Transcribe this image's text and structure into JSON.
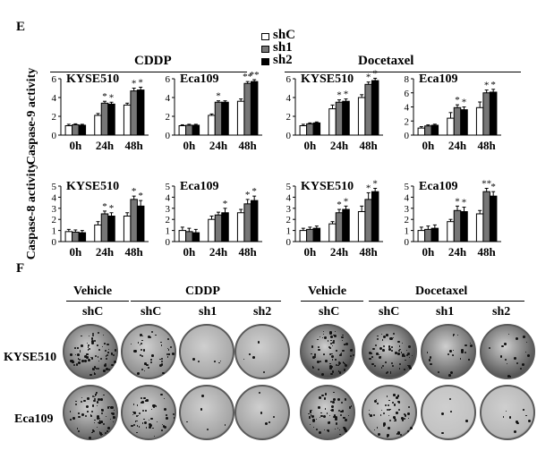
{
  "panels": {
    "E": "E",
    "F": "F"
  },
  "legend": [
    {
      "label": "shC",
      "color": "#ffffff"
    },
    {
      "label": "sh1",
      "color": "#777777"
    },
    {
      "label": "sh2",
      "color": "#000000"
    }
  ],
  "headers": {
    "cddp": "CDDP",
    "docetaxel": "Docetaxel"
  },
  "ylabels": {
    "casp9": "Caspase-9 activity",
    "casp8": "Caspase-8 activity"
  },
  "chart_data": [
    {
      "type": "bar",
      "title": "KYSE510",
      "group": "CDDP",
      "ylabel": "Caspase-9 activity",
      "categories": [
        "0h",
        "24h",
        "48h"
      ],
      "ylim": [
        0,
        6
      ],
      "yticks": [
        0,
        2,
        4,
        6
      ],
      "series": [
        {
          "name": "shC",
          "values": [
            1.0,
            2.1,
            3.2
          ],
          "errors": [
            0.15,
            0.2,
            0.2
          ]
        },
        {
          "name": "sh1",
          "values": [
            1.1,
            3.4,
            4.7
          ],
          "errors": [
            0.1,
            0.2,
            0.3
          ]
        },
        {
          "name": "sh2",
          "values": [
            1.05,
            3.3,
            4.8
          ],
          "errors": [
            0.1,
            0.2,
            0.3
          ]
        }
      ],
      "annotations": [
        {
          "category": "24h",
          "series": "sh1",
          "text": "*"
        },
        {
          "category": "24h",
          "series": "sh2",
          "text": "*"
        },
        {
          "category": "48h",
          "series": "sh1",
          "text": "*"
        },
        {
          "category": "48h",
          "series": "sh2",
          "text": "*"
        }
      ]
    },
    {
      "type": "bar",
      "title": "Eca109",
      "group": "CDDP",
      "ylabel": "Caspase-9 activity",
      "categories": [
        "0h",
        "24h",
        "48h"
      ],
      "ylim": [
        0,
        6
      ],
      "yticks": [
        0,
        2,
        4,
        6
      ],
      "series": [
        {
          "name": "shC",
          "values": [
            1.0,
            2.1,
            3.6
          ],
          "errors": [
            0.1,
            0.15,
            0.25
          ]
        },
        {
          "name": "sh1",
          "values": [
            1.05,
            3.5,
            5.5
          ],
          "errors": [
            0.1,
            0.15,
            0.2
          ]
        },
        {
          "name": "sh2",
          "values": [
            1.05,
            3.5,
            5.7
          ],
          "errors": [
            0.1,
            0.15,
            0.2
          ]
        }
      ],
      "annotations": [
        {
          "category": "24h",
          "series": "sh1",
          "text": "*"
        },
        {
          "category": "48h",
          "series": "sh1",
          "text": "**"
        },
        {
          "category": "48h",
          "series": "sh2",
          "text": "**"
        }
      ]
    },
    {
      "type": "bar",
      "title": "KYSE510",
      "group": "Docetaxel",
      "ylabel": "Caspase-9 activity",
      "categories": [
        "0h",
        "24h",
        "48h"
      ],
      "ylim": [
        0,
        6
      ],
      "yticks": [
        0,
        2,
        4,
        6
      ],
      "series": [
        {
          "name": "shC",
          "values": [
            1.0,
            2.8,
            4.0
          ],
          "errors": [
            0.15,
            0.4,
            0.3
          ]
        },
        {
          "name": "sh1",
          "values": [
            1.2,
            3.5,
            5.4
          ],
          "errors": [
            0.1,
            0.25,
            0.25
          ]
        },
        {
          "name": "sh2",
          "values": [
            1.3,
            3.6,
            5.8
          ],
          "errors": [
            0.1,
            0.25,
            0.25
          ]
        }
      ],
      "annotations": [
        {
          "category": "24h",
          "series": "sh1",
          "text": "*"
        },
        {
          "category": "24h",
          "series": "sh2",
          "text": "*"
        },
        {
          "category": "48h",
          "series": "sh1",
          "text": "*"
        },
        {
          "category": "48h",
          "series": "sh2",
          "text": "*"
        }
      ]
    },
    {
      "type": "bar",
      "title": "Eca109",
      "group": "Docetaxel",
      "ylabel": "Caspase-9 activity",
      "categories": [
        "0h",
        "24h",
        "48h"
      ],
      "ylim": [
        0,
        8
      ],
      "yticks": [
        0,
        2,
        4,
        6,
        8
      ],
      "series": [
        {
          "name": "shC",
          "values": [
            1.0,
            2.4,
            3.9
          ],
          "errors": [
            0.2,
            0.8,
            0.8
          ]
        },
        {
          "name": "sh1",
          "values": [
            1.3,
            3.9,
            6.0
          ],
          "errors": [
            0.15,
            0.4,
            0.4
          ]
        },
        {
          "name": "sh2",
          "values": [
            1.4,
            3.6,
            6.1
          ],
          "errors": [
            0.15,
            0.4,
            0.4
          ]
        }
      ],
      "annotations": [
        {
          "category": "24h",
          "series": "sh1",
          "text": "*"
        },
        {
          "category": "24h",
          "series": "sh2",
          "text": "*"
        },
        {
          "category": "48h",
          "series": "sh1",
          "text": "*"
        },
        {
          "category": "48h",
          "series": "sh2",
          "text": "*"
        }
      ]
    },
    {
      "type": "bar",
      "title": "KYSE510",
      "group": "CDDP",
      "ylabel": "Caspase-8 activity",
      "categories": [
        "0h",
        "24h",
        "48h"
      ],
      "ylim": [
        0,
        5
      ],
      "yticks": [
        0,
        1,
        2,
        3,
        4,
        5
      ],
      "series": [
        {
          "name": "shC",
          "values": [
            0.9,
            1.5,
            2.3
          ],
          "errors": [
            0.2,
            0.3,
            0.3
          ]
        },
        {
          "name": "sh1",
          "values": [
            0.85,
            2.5,
            3.8
          ],
          "errors": [
            0.2,
            0.25,
            0.3
          ]
        },
        {
          "name": "sh2",
          "values": [
            0.8,
            2.3,
            3.2
          ],
          "errors": [
            0.2,
            0.3,
            0.5
          ]
        }
      ],
      "annotations": [
        {
          "category": "24h",
          "series": "sh1",
          "text": "*"
        },
        {
          "category": "24h",
          "series": "sh2",
          "text": "*"
        },
        {
          "category": "48h",
          "series": "sh1",
          "text": "*"
        },
        {
          "category": "48h",
          "series": "sh2",
          "text": "*"
        }
      ]
    },
    {
      "type": "bar",
      "title": "Eca109",
      "group": "CDDP",
      "ylabel": "Caspase-8 activity",
      "categories": [
        "0h",
        "24h",
        "48h"
      ],
      "ylim": [
        0,
        5
      ],
      "yticks": [
        0,
        1,
        2,
        3,
        4,
        5
      ],
      "series": [
        {
          "name": "shC",
          "values": [
            1.0,
            2.0,
            2.6
          ],
          "errors": [
            0.3,
            0.3,
            0.3
          ]
        },
        {
          "name": "sh1",
          "values": [
            0.9,
            2.4,
            3.4
          ],
          "errors": [
            0.3,
            0.25,
            0.4
          ]
        },
        {
          "name": "sh2",
          "values": [
            0.8,
            2.6,
            3.7
          ],
          "errors": [
            0.3,
            0.4,
            0.4
          ]
        }
      ],
      "annotations": [
        {
          "category": "24h",
          "series": "sh2",
          "text": "*"
        },
        {
          "category": "48h",
          "series": "sh1",
          "text": "*"
        },
        {
          "category": "48h",
          "series": "sh2",
          "text": "*"
        }
      ]
    },
    {
      "type": "bar",
      "title": "KYSE510",
      "group": "Docetaxel",
      "ylabel": "Caspase-8 activity",
      "categories": [
        "0h",
        "24h",
        "48h"
      ],
      "ylim": [
        0,
        5
      ],
      "yticks": [
        0,
        1,
        2,
        3,
        4,
        5
      ],
      "series": [
        {
          "name": "shC",
          "values": [
            1.0,
            1.6,
            2.7
          ],
          "errors": [
            0.2,
            0.2,
            0.5
          ]
        },
        {
          "name": "sh1",
          "values": [
            1.1,
            2.6,
            3.8
          ],
          "errors": [
            0.2,
            0.3,
            0.6
          ]
        },
        {
          "name": "sh2",
          "values": [
            1.2,
            2.9,
            4.5
          ],
          "errors": [
            0.2,
            0.3,
            0.3
          ]
        }
      ],
      "annotations": [
        {
          "category": "24h",
          "series": "sh1",
          "text": "*"
        },
        {
          "category": "24h",
          "series": "sh2",
          "text": "*"
        },
        {
          "category": "48h",
          "series": "sh1",
          "text": "*"
        },
        {
          "category": "48h",
          "series": "sh2",
          "text": "*"
        }
      ]
    },
    {
      "type": "bar",
      "title": "Eca109",
      "group": "Docetaxel",
      "ylabel": "Caspase-8 activity",
      "categories": [
        "0h",
        "24h",
        "48h"
      ],
      "ylim": [
        0,
        5
      ],
      "yticks": [
        0,
        1,
        2,
        3,
        4,
        5
      ],
      "series": [
        {
          "name": "shC",
          "values": [
            1.0,
            1.8,
            2.5
          ],
          "errors": [
            0.3,
            0.2,
            0.3
          ]
        },
        {
          "name": "sh1",
          "values": [
            1.1,
            2.8,
            4.5
          ],
          "errors": [
            0.3,
            0.4,
            0.3
          ]
        },
        {
          "name": "sh2",
          "values": [
            1.2,
            2.7,
            4.1
          ],
          "errors": [
            0.3,
            0.4,
            0.4
          ]
        }
      ],
      "annotations": [
        {
          "category": "24h",
          "series": "sh1",
          "text": "*"
        },
        {
          "category": "24h",
          "series": "sh2",
          "text": "*"
        },
        {
          "category": "48h",
          "series": "sh1",
          "text": "**"
        },
        {
          "category": "48h",
          "series": "sh2",
          "text": "*"
        }
      ]
    }
  ],
  "panelF": {
    "cddp_header": {
      "vehicle": "Vehicle",
      "drug": "CDDP"
    },
    "doc_header": {
      "vehicle": "Vehicle",
      "drug": "Docetaxel"
    },
    "cddp_columns": [
      "shC",
      "shC",
      "sh1",
      "sh2"
    ],
    "doc_columns": [
      "shC",
      "shC",
      "sh1",
      "sh2"
    ],
    "rows": [
      "KYSE510",
      "Eca109"
    ]
  }
}
